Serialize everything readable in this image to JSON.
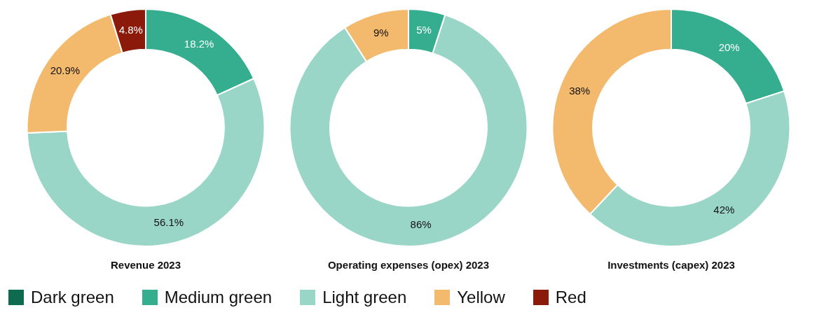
{
  "chart_data": [
    {
      "type": "donut",
      "title": "Revenue 2023",
      "categories": [
        "Dark green",
        "Medium green",
        "Light green",
        "Yellow",
        "Red"
      ],
      "values": [
        0,
        18.2,
        56.1,
        20.9,
        4.8
      ],
      "colors": [
        "#0e6b50",
        "#34ae8e",
        "#9ad6c7",
        "#f3b96c",
        "#8b1a0a"
      ],
      "value_labels": [
        null,
        "18.2%",
        "56.1%",
        "20.9%",
        "4.8%"
      ],
      "legend": "bottom"
    },
    {
      "type": "donut",
      "title": "Operating expenses (opex) 2023",
      "categories": [
        null,
        null,
        null,
        null,
        null
      ],
      "values": [
        0,
        5,
        86,
        9,
        0
      ],
      "colors": [
        "#0e6b50",
        "#34ae8e",
        "#9ad6c7",
        "#f3b96c",
        "#8b1a0a"
      ],
      "value_labels": [
        null,
        "5%",
        "86%",
        "9%",
        null
      ]
    },
    {
      "type": "donut",
      "title": "Investments (capex) 2023",
      "categories": [
        null,
        null,
        null,
        null,
        null
      ],
      "values": [
        0,
        20,
        42,
        38,
        0
      ],
      "colors": [
        "#0e6b50",
        "#34ae8e",
        "#9ad6c7",
        "#f3b96c",
        "#8b1a0a"
      ],
      "value_labels": [
        null,
        "20%",
        "42%",
        "38%",
        null
      ]
    }
  ]
}
